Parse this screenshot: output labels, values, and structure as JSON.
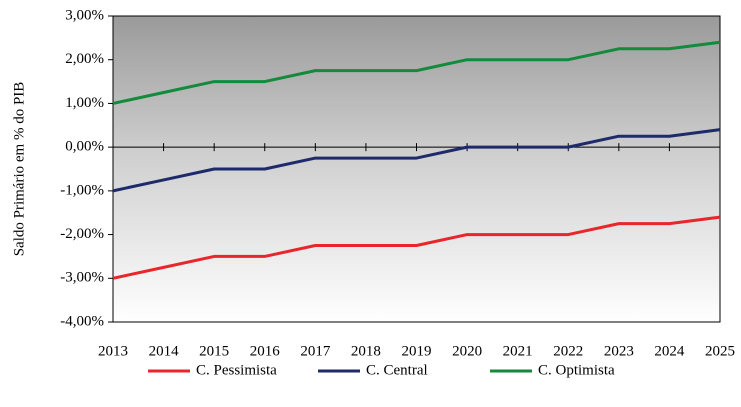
{
  "chart_data": {
    "type": "line",
    "ylabel": "Saldo Primário em % do PIB",
    "x": [
      2013,
      2014,
      2015,
      2016,
      2017,
      2018,
      2019,
      2020,
      2021,
      2022,
      2023,
      2024,
      2025
    ],
    "xlim": [
      2013,
      2025
    ],
    "xticks": [
      2013,
      2014,
      2015,
      2016,
      2017,
      2018,
      2019,
      2020,
      2021,
      2022,
      2023,
      2024,
      2025
    ],
    "ylim": [
      -4,
      3
    ],
    "yticks": [
      {
        "value": -4,
        "label": "-4,00%"
      },
      {
        "value": -3,
        "label": "-3,00%"
      },
      {
        "value": -2,
        "label": "-2,00%"
      },
      {
        "value": -1,
        "label": "-1,00%"
      },
      {
        "value": 0,
        "label": "0,00%"
      },
      {
        "value": 1,
        "label": "1,00%"
      },
      {
        "value": 2,
        "label": "2,00%"
      },
      {
        "value": 3,
        "label": "3,00%"
      }
    ],
    "series": [
      {
        "name": "C. Pessimista",
        "color": "#e8262b",
        "values": [
          -3.0,
          -2.75,
          -2.5,
          -2.5,
          -2.25,
          -2.25,
          -2.25,
          -2.0,
          -2.0,
          -2.0,
          -1.75,
          -1.75,
          -1.6
        ]
      },
      {
        "name": "C. Central",
        "color": "#1f2a6b",
        "values": [
          -1.0,
          -0.75,
          -0.5,
          -0.5,
          -0.25,
          -0.25,
          -0.25,
          0.0,
          0.0,
          0.0,
          0.25,
          0.25,
          0.4
        ]
      },
      {
        "name": "C. Optimista",
        "color": "#138a3c",
        "values": [
          1.0,
          1.25,
          1.5,
          1.5,
          1.75,
          1.75,
          1.75,
          2.0,
          2.0,
          2.0,
          2.25,
          2.25,
          2.4
        ]
      }
    ]
  }
}
